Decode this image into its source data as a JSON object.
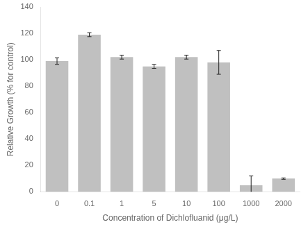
{
  "chart_data": {
    "type": "bar",
    "categories": [
      "0",
      "0.1",
      "1",
      "5",
      "10",
      "100",
      "1000",
      "2000"
    ],
    "values": [
      99,
      119,
      102,
      95,
      102,
      98,
      5,
      10
    ],
    "errors": [
      2.5,
      1.5,
      1.5,
      1.5,
      1.5,
      9,
      7,
      0.5
    ],
    "color": "#C0C0C0",
    "xlabel": "Concentration of Dichlofluanid (μg/L)",
    "ylabel": "Relative Growth (% for control)",
    "ylim": [
      0,
      140
    ],
    "yticks": [
      0,
      20,
      40,
      60,
      80,
      100,
      120,
      140
    ],
    "grid": false
  }
}
